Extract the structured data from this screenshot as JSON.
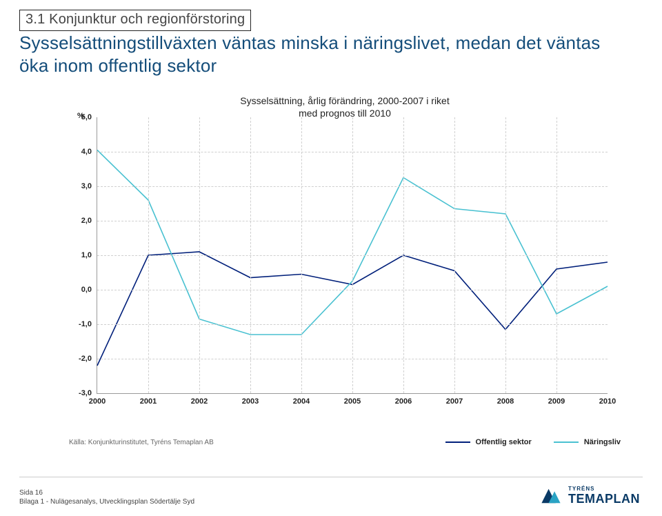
{
  "section_label": "3.1 Konjunktur och regionförstoring",
  "title": "Sysselsättningstillväxten väntas minska i näringslivet, medan det väntas öka inom offentlig sektor",
  "chart": {
    "type": "line",
    "title_line1": "Sysselsättning, årlig förändring, 2000-2007 i riket",
    "title_line2": "med prognos till 2010",
    "title_fontsize": 14,
    "y_unit": "%",
    "ylim": [
      -3.0,
      5.0
    ],
    "ytick_step": 1.0,
    "yticks": [
      "5,0",
      "4,0",
      "3,0",
      "2,0",
      "1,0",
      "0,0",
      "-1,0",
      "-2,0",
      "-3,0"
    ],
    "xticks": [
      "2000",
      "2001",
      "2002",
      "2003",
      "2004",
      "2005",
      "2006",
      "2007",
      "2008",
      "2009",
      "2010"
    ],
    "grid_color": "#cfcfcf",
    "axis_color": "#999999",
    "background_color": "#ffffff",
    "label_fontsize": 11,
    "line_width": 1.6,
    "series": [
      {
        "name": "Offentlig sektor",
        "color": "#001f7a",
        "values": [
          -2.2,
          1.0,
          1.1,
          0.35,
          0.45,
          0.15,
          1.0,
          0.55,
          -1.15,
          0.6,
          0.8
        ]
      },
      {
        "name": "Näringsliv",
        "color": "#49c1d1",
        "values": [
          4.05,
          2.6,
          -0.85,
          -1.3,
          -1.3,
          0.25,
          3.25,
          2.35,
          2.2,
          -0.7,
          0.1
        ]
      }
    ]
  },
  "source_label": "Källa: Konjunkturinstitutet, Tyréns Temaplan AB",
  "footer_line1": "Sida 16",
  "footer_line2": "Bilaga 1 - Nulägesanalys, Utvecklingsplan Södertälje Syd",
  "logo": {
    "text": "TEMAPLAN",
    "brand_dark": "#0a3a66",
    "brand_accent": "#2aa3c4",
    "subbrand": "TYRÉNS"
  }
}
